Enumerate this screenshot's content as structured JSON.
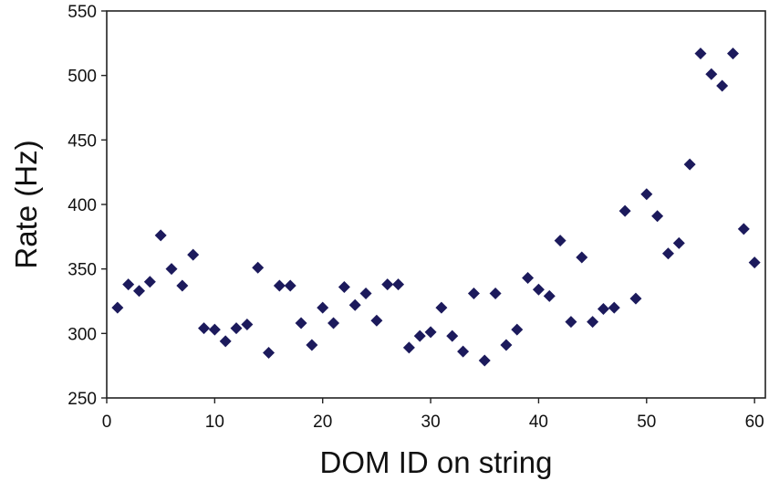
{
  "chart_data": {
    "type": "scatter",
    "title": "",
    "xlabel": "DOM ID on string",
    "ylabel": "Rate  (Hz)",
    "xlim": [
      0,
      61
    ],
    "ylim": [
      250,
      550
    ],
    "xticks": [
      0,
      10,
      20,
      30,
      40,
      50,
      60
    ],
    "yticks": [
      250,
      300,
      350,
      400,
      450,
      500,
      550
    ],
    "grid": false,
    "legend": "none",
    "marker": "diamond",
    "marker_color": "#1c1a5c",
    "x": [
      1,
      2,
      3,
      4,
      5,
      6,
      7,
      8,
      9,
      10,
      11,
      12,
      13,
      14,
      15,
      16,
      17,
      18,
      19,
      20,
      21,
      22,
      23,
      24,
      25,
      26,
      27,
      28,
      29,
      30,
      31,
      32,
      33,
      34,
      35,
      36,
      37,
      38,
      39,
      40,
      41,
      42,
      43,
      44,
      45,
      46,
      47,
      48,
      49,
      50,
      51,
      52,
      53,
      54,
      55,
      56,
      57,
      58,
      59,
      60
    ],
    "y": [
      320,
      338,
      333,
      340,
      376,
      350,
      337,
      361,
      304,
      303,
      294,
      304,
      307,
      351,
      285,
      337,
      337,
      308,
      291,
      320,
      308,
      336,
      322,
      331,
      310,
      338,
      338,
      289,
      298,
      301,
      320,
      298,
      286,
      331,
      279,
      331,
      291,
      303,
      343,
      334,
      329,
      372,
      309,
      359,
      309,
      319,
      320,
      395,
      327,
      408,
      391,
      362,
      370,
      431,
      517,
      501,
      492,
      517,
      381,
      355
    ]
  }
}
